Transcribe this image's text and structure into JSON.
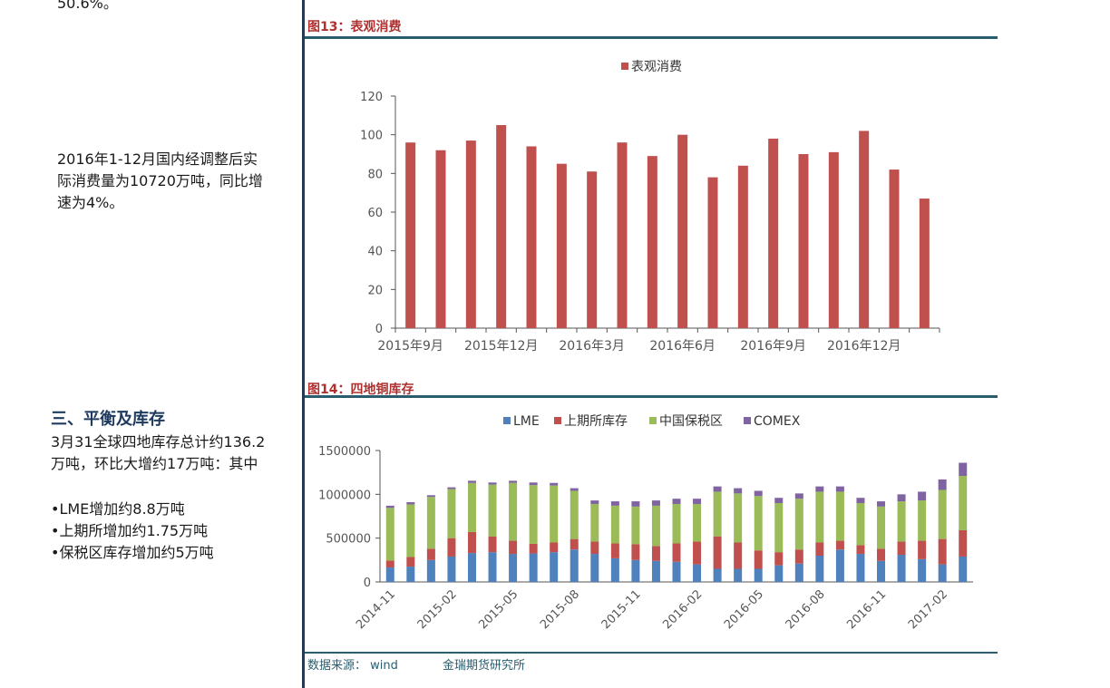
{
  "left": {
    "top_fragment": "50.6%。",
    "para1": [
      "2016年1-12月国内经调整后实",
      "际消费量为10720万吨，同比增",
      "速为4%。"
    ],
    "section_title": "三、平衡及库存",
    "para2": [
      "3月31全球四地库存总计约136.2",
      "万吨，环比大增约17万吨：其中"
    ],
    "bullets": [
      "•LME增加约8.8万吨",
      "•上期所增加约1.75万吨",
      "•保税区库存增加约5万吨"
    ]
  },
  "fig13": {
    "title": "图13：表观消费"
  },
  "fig14": {
    "title": "图14：四地铜库存"
  },
  "footer": {
    "source": "数据来源：  wind",
    "org": "金瑞期货研究所"
  },
  "colors": {
    "red": "#c0504d",
    "blue": "#4f81bd",
    "green": "#9bbb59",
    "purple": "#8064a2",
    "accent": "#b03030",
    "rule": "#2a5d6e"
  },
  "chart_data": [
    {
      "type": "bar",
      "legend": [
        "表观消费"
      ],
      "legend_position": "top-center",
      "tick_labels": [
        "2015年9月",
        "2015年12月",
        "2016年3月",
        "2016年6月",
        "2016年9月",
        "2016年12月"
      ],
      "series": [
        {
          "name": "表观消费",
          "values": [
            96,
            92,
            97,
            105,
            94,
            85,
            81,
            96,
            89,
            100,
            78,
            84,
            98,
            90,
            91,
            102,
            82,
            67
          ]
        }
      ],
      "ylim": [
        0,
        120
      ],
      "yticks": [
        0,
        20,
        40,
        60,
        80,
        100,
        120
      ],
      "grid": false
    },
    {
      "type": "bar",
      "stacked": true,
      "legend": [
        "LME",
        "上期所库存",
        "中国保税区",
        "COMEX"
      ],
      "legend_position": "top-center",
      "tick_labels": [
        "2014-11",
        "2015-02",
        "2015-05",
        "2015-08",
        "2015-11",
        "2016-02",
        "2016-05",
        "2016-08",
        "2016-11",
        "2017-02"
      ],
      "series": [
        {
          "name": "LME",
          "values": [
            165000,
            175000,
            250000,
            290000,
            330000,
            340000,
            320000,
            325000,
            340000,
            370000,
            320000,
            270000,
            250000,
            240000,
            230000,
            200000,
            150000,
            150000,
            150000,
            190000,
            210000,
            300000,
            370000,
            320000,
            240000,
            310000,
            260000,
            200000,
            290000
          ]
        },
        {
          "name": "上期所库存",
          "values": [
            80000,
            110000,
            130000,
            210000,
            240000,
            180000,
            150000,
            110000,
            110000,
            120000,
            140000,
            170000,
            180000,
            170000,
            210000,
            260000,
            370000,
            300000,
            210000,
            150000,
            160000,
            150000,
            100000,
            100000,
            140000,
            150000,
            210000,
            290000,
            300000
          ]
        },
        {
          "name": "中国保税区",
          "values": [
            600000,
            600000,
            590000,
            560000,
            560000,
            590000,
            660000,
            670000,
            650000,
            550000,
            430000,
            430000,
            430000,
            460000,
            450000,
            430000,
            510000,
            560000,
            620000,
            560000,
            580000,
            580000,
            560000,
            480000,
            480000,
            460000,
            460000,
            560000,
            620000
          ]
        },
        {
          "name": "COMEX",
          "values": [
            25000,
            25000,
            20000,
            20000,
            25000,
            25000,
            25000,
            30000,
            30000,
            30000,
            40000,
            50000,
            60000,
            60000,
            60000,
            60000,
            60000,
            60000,
            60000,
            60000,
            60000,
            60000,
            60000,
            60000,
            60000,
            80000,
            100000,
            120000,
            150000
          ]
        }
      ],
      "ylim": [
        0,
        1500000
      ],
      "yticks": [
        0,
        500000,
        1000000,
        1500000
      ],
      "grid": false
    }
  ]
}
